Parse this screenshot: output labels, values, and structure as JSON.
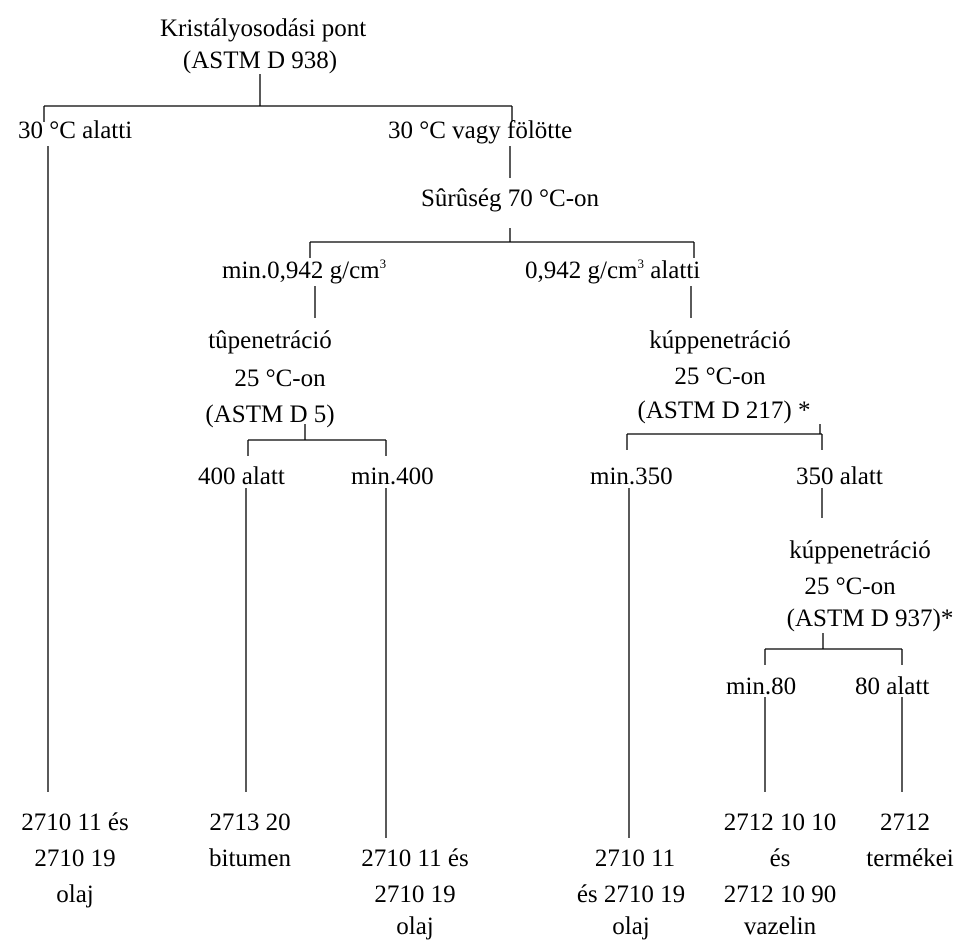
{
  "root": {
    "line1": "Kristályosodási pont",
    "line2": "(ASTM D 938)"
  },
  "branch_below30": "30 °C alatti",
  "branch_above30": "30 °C vagy fölötte",
  "density": "Sûrûség 70 °C-on",
  "density_high": {
    "prefix": "min.0,942 g/cm",
    "exp": "3",
    "suffix": ""
  },
  "density_low": {
    "prefix": "0,942 g/cm",
    "exp": "3",
    "suffix": " alatti"
  },
  "needle": {
    "line1": "tûpenetráció",
    "line2": "25 °C-on",
    "line3": "(ASTM D 5)"
  },
  "needle_below": "400 alatt",
  "needle_min": "min.400",
  "cone1": {
    "line1": "kúppenetráció",
    "line2": "25 °C-on",
    "line3": "(ASTM D 217) *"
  },
  "cone1_min": "min.350",
  "cone1_below": "350 alatt",
  "cone2": {
    "line1": "kúppenetráció",
    "line2": "25 °C-on",
    "line3": "(ASTM D 937)*"
  },
  "cone2_min": "min.80",
  "cone2_below": "80 alatt",
  "results": {
    "r1": {
      "line1": "2710 11 és",
      "line2": "2710 19",
      "line3": "olaj"
    },
    "r2": {
      "line1": "2713 20",
      "line2": "bitumen"
    },
    "r3": {
      "line1": "2710 11 és",
      "line2": "2710 19",
      "line3": "olaj"
    },
    "r4": {
      "line1": "2710 11",
      "line2": "és 2710 19",
      "line3": "olaj"
    },
    "r5": {
      "line1": "2712 10 10",
      "line2": "és",
      "line3": "2712 10 90",
      "line4": "vazelin"
    },
    "r6": {
      "line1": "2712",
      "line2": "termékei"
    }
  }
}
